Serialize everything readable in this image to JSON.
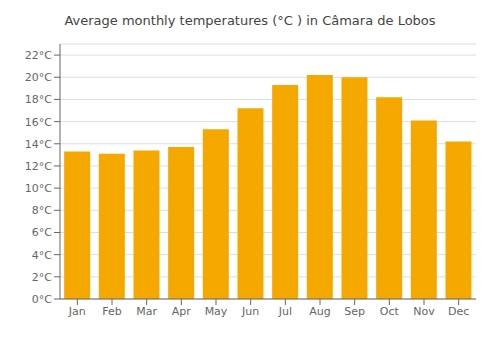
{
  "chart_data": {
    "type": "bar",
    "title": "Average monthly temperatures (°C ) in Câmara de Lobos",
    "categories": [
      "Jan",
      "Feb",
      "Mar",
      "Apr",
      "May",
      "Jun",
      "Jul",
      "Aug",
      "Sep",
      "Oct",
      "Nov",
      "Dec"
    ],
    "values": [
      13.3,
      13.1,
      13.4,
      13.7,
      15.3,
      17.2,
      19.3,
      20.2,
      20.0,
      18.2,
      16.1,
      14.2
    ],
    "color": "#F5A800",
    "ylim": [
      0,
      23
    ],
    "yticks": [
      {
        "value": 0,
        "label": "0°C"
      },
      {
        "value": 2,
        "label": "2°C"
      },
      {
        "value": 4,
        "label": "4°C"
      },
      {
        "value": 6,
        "label": "6°C"
      },
      {
        "value": 8,
        "label": "8°C"
      },
      {
        "value": 10,
        "label": "10°C"
      },
      {
        "value": 12,
        "label": "12°C"
      },
      {
        "value": 14,
        "label": "14°C"
      },
      {
        "value": 16,
        "label": "16°C"
      },
      {
        "value": 18,
        "label": "18°C"
      },
      {
        "value": 20,
        "label": "20°C"
      },
      {
        "value": 22,
        "label": "22°C"
      }
    ],
    "grid": true
  }
}
